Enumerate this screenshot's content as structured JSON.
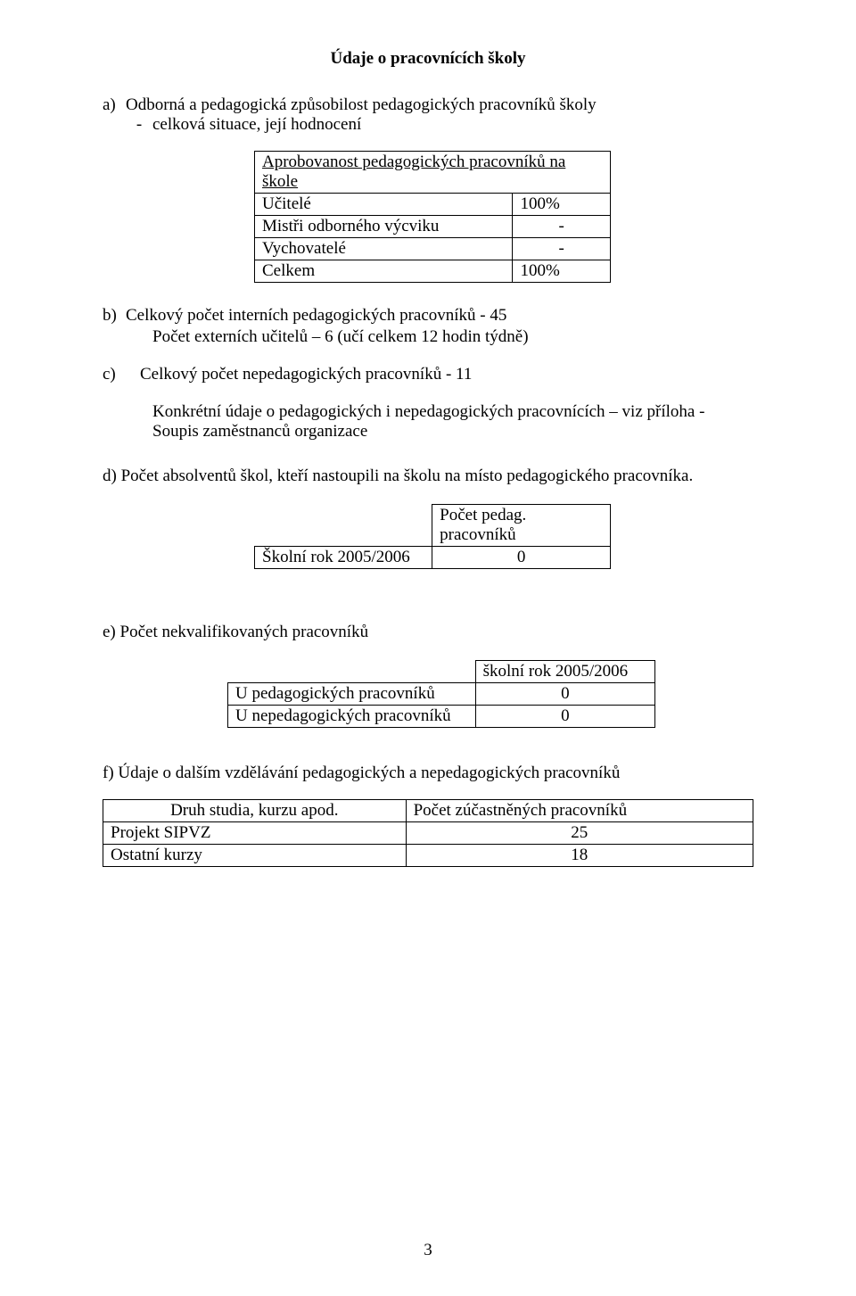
{
  "title": "Údaje o pracovnících školy",
  "section_a": {
    "letter": "a)",
    "line1": "Odborná a pedagogická způsobilost pedagogických pracovníků školy",
    "dash": "-",
    "line2": "celková situace, její hodnocení"
  },
  "table1": {
    "header": "Aprobovanost pedagogických pracovníků na škole",
    "rows": [
      [
        "Učitelé",
        "100%"
      ],
      [
        "Mistři odborného výcviku",
        "-"
      ],
      [
        "Vychovatelé",
        "-"
      ],
      [
        "Celkem",
        "100%"
      ]
    ]
  },
  "section_b": {
    "letter": "b)",
    "line1": "Celkový počet interních pedagogických pracovníků -  45",
    "line2": "Počet externích učitelů – 6  (učí celkem 12 hodin týdně)"
  },
  "section_c": {
    "letter": "c)",
    "text": "Celkový počet nepedagogických pracovníků - 11"
  },
  "section_c_detail": "Konkrétní údaje o pedagogických i nepedagogických pracovnících – viz příloha - Soupis zaměstnanců organizace",
  "section_d": {
    "text": "d) Počet absolventů škol, kteří nastoupili na školu na místo pedagogického pracovníka."
  },
  "table_d": {
    "header": "Počet pedag. pracovníků",
    "row_label": "Školní rok 2005/2006",
    "row_value": "0"
  },
  "section_e": {
    "text": "e) Počet nekvalifikovaných pracovníků"
  },
  "table_e": {
    "header": "školní rok 2005/2006",
    "rows": [
      [
        "U pedagogických  pracovníků",
        "0"
      ],
      [
        "U nepedagogických pracovníků",
        "0"
      ]
    ]
  },
  "section_f": {
    "text": "f) Údaje o dalším vzdělávání pedagogických a nepedagogických pracovníků"
  },
  "table_f": {
    "col1": "Druh studia, kurzu apod.",
    "col2": "Počet zúčastněných pracovníků",
    "rows": [
      [
        "Projekt SIPVZ",
        "25"
      ],
      [
        "Ostatní kurzy",
        "18"
      ]
    ]
  },
  "page_number": "3"
}
